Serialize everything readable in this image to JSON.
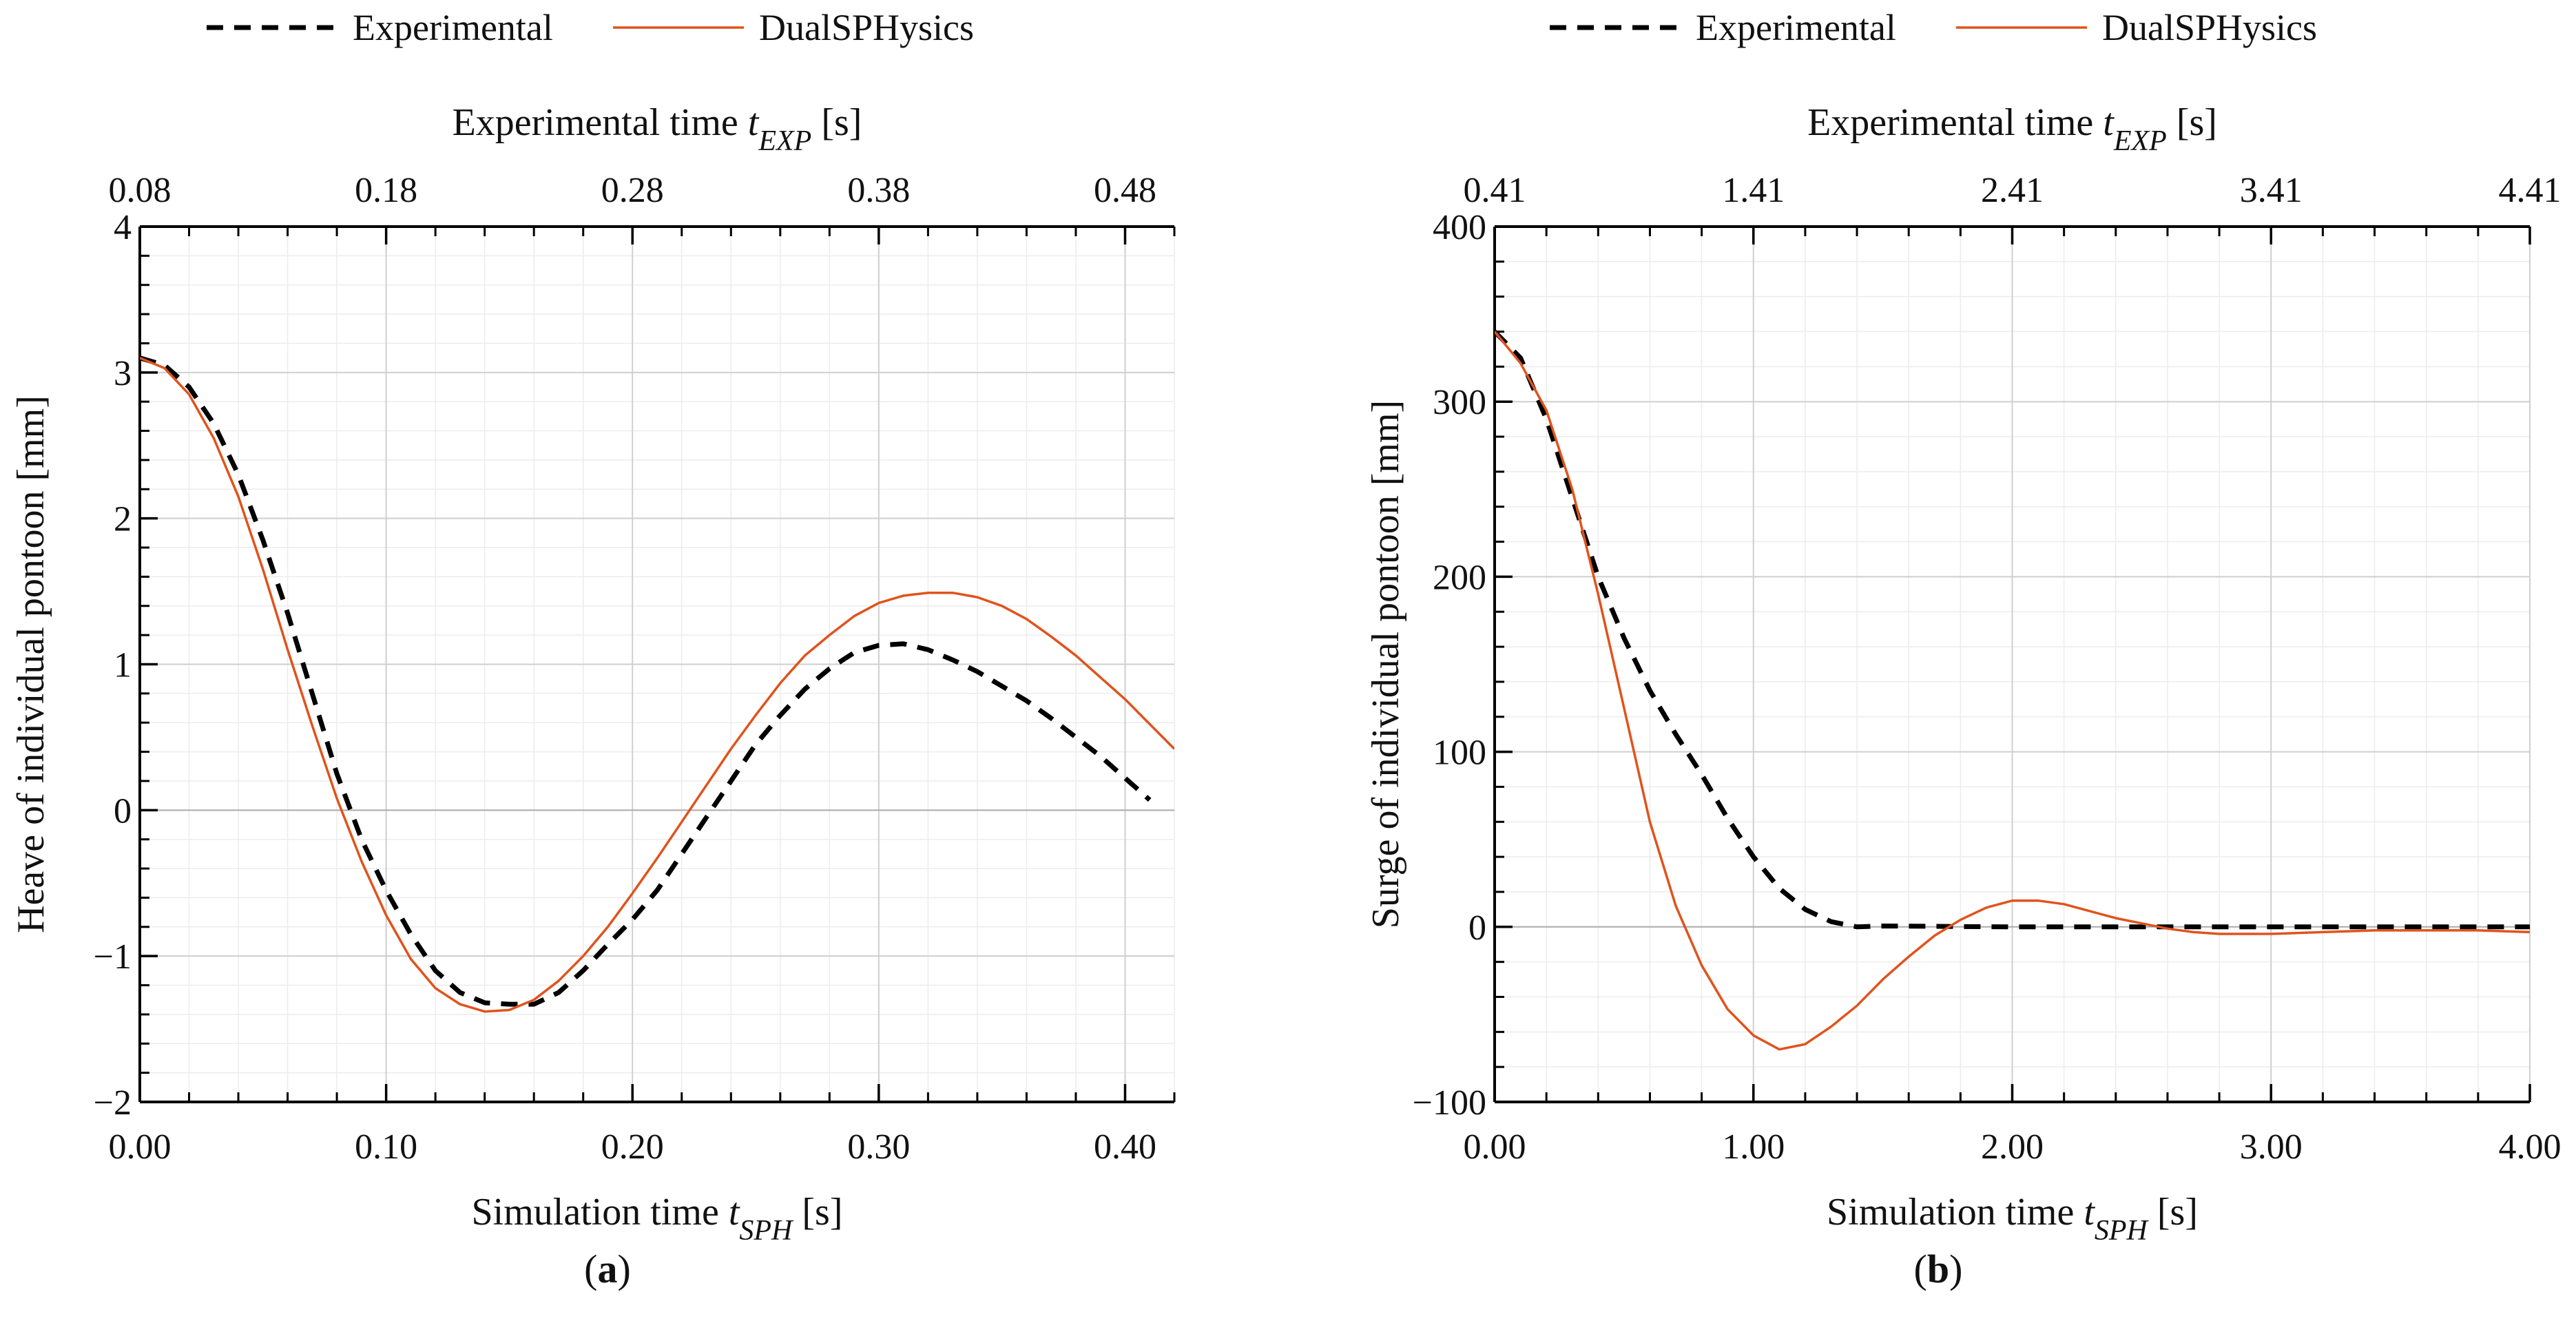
{
  "colors": {
    "experimental": "#000000",
    "dualsphysics": "#e0531c",
    "grid_major": "#cfcfcf",
    "grid_minor": "#ececec"
  },
  "chart_data": [
    {
      "type": "line",
      "caption": "a",
      "legend": [
        "Experimental",
        "DualSPHysics"
      ],
      "legend_placement": "top",
      "xlabel": {
        "text": "Simulation time",
        "var": "t",
        "sub": "SPH",
        "unit": "[s]"
      },
      "x2label": {
        "text": "Experimental time",
        "var": "t",
        "sub": "EXP",
        "unit": "[s]"
      },
      "ylabel": "Heave of individual pontoon [mm]",
      "xlim": [
        0,
        0.42
      ],
      "ylim": [
        -2,
        4
      ],
      "xticks": [
        0,
        0.1,
        0.2,
        0.3,
        0.4
      ],
      "xtick_labels": [
        "0.00",
        "0.10",
        "0.20",
        "0.30",
        "0.40"
      ],
      "x2tick_labels": [
        "0.08",
        "0.18",
        "0.28",
        "0.38",
        "0.48"
      ],
      "yticks": [
        -2,
        -1,
        0,
        1,
        2,
        3,
        4
      ],
      "ytick_labels": [
        "−2",
        "−1",
        "0",
        "1",
        "2",
        "3",
        "4"
      ],
      "xminor": 0.02,
      "yminor": 0.2,
      "grid": true,
      "series": [
        {
          "name": "Experimental",
          "style": "dashed",
          "x": [
            0,
            0.01,
            0.02,
            0.03,
            0.04,
            0.05,
            0.06,
            0.07,
            0.08,
            0.09,
            0.1,
            0.11,
            0.12,
            0.13,
            0.14,
            0.15,
            0.16,
            0.17,
            0.18,
            0.19,
            0.2,
            0.21,
            0.22,
            0.23,
            0.24,
            0.25,
            0.26,
            0.27,
            0.28,
            0.29,
            0.3,
            0.31,
            0.32,
            0.33,
            0.34,
            0.35,
            0.36,
            0.37,
            0.38,
            0.39,
            0.4,
            0.41
          ],
          "y": [
            3.1,
            3.05,
            2.9,
            2.65,
            2.3,
            1.85,
            1.35,
            0.8,
            0.25,
            -0.2,
            -0.55,
            -0.85,
            -1.1,
            -1.25,
            -1.32,
            -1.33,
            -1.33,
            -1.25,
            -1.1,
            -0.92,
            -0.75,
            -0.55,
            -0.3,
            -0.05,
            0.2,
            0.45,
            0.65,
            0.83,
            0.97,
            1.08,
            1.13,
            1.14,
            1.1,
            1.03,
            0.95,
            0.85,
            0.75,
            0.63,
            0.5,
            0.37,
            0.22,
            0.07
          ]
        },
        {
          "name": "DualSPHysics",
          "style": "solid",
          "x": [
            0,
            0.01,
            0.02,
            0.03,
            0.04,
            0.05,
            0.06,
            0.07,
            0.08,
            0.09,
            0.1,
            0.11,
            0.12,
            0.13,
            0.14,
            0.15,
            0.16,
            0.17,
            0.18,
            0.19,
            0.2,
            0.21,
            0.22,
            0.23,
            0.24,
            0.25,
            0.26,
            0.27,
            0.28,
            0.29,
            0.3,
            0.31,
            0.32,
            0.33,
            0.34,
            0.35,
            0.36,
            0.37,
            0.38,
            0.39,
            0.4,
            0.41,
            0.42
          ],
          "y": [
            3.1,
            3.03,
            2.85,
            2.55,
            2.15,
            1.65,
            1.1,
            0.58,
            0.08,
            -0.35,
            -0.72,
            -1.02,
            -1.22,
            -1.33,
            -1.38,
            -1.37,
            -1.3,
            -1.17,
            -1.0,
            -0.8,
            -0.57,
            -0.33,
            -0.08,
            0.17,
            0.42,
            0.65,
            0.87,
            1.06,
            1.2,
            1.33,
            1.42,
            1.47,
            1.49,
            1.49,
            1.46,
            1.4,
            1.31,
            1.19,
            1.06,
            0.91,
            0.76,
            0.59,
            0.42
          ]
        }
      ]
    },
    {
      "type": "line",
      "caption": "b",
      "legend": [
        "Experimental",
        "DualSPHysics"
      ],
      "legend_placement": "top",
      "xlabel": {
        "text": "Simulation time",
        "var": "t",
        "sub": "SPH",
        "unit": "[s]"
      },
      "x2label": {
        "text": "Experimental time",
        "var": "t",
        "sub": "EXP",
        "unit": "[s]"
      },
      "ylabel": "Surge of individual pontoon [mm]",
      "xlim": [
        0,
        4
      ],
      "ylim": [
        -100,
        400
      ],
      "xticks": [
        0,
        1,
        2,
        3,
        4
      ],
      "xtick_labels": [
        "0.00",
        "1.00",
        "2.00",
        "3.00",
        "4.00"
      ],
      "x2tick_labels": [
        "0.41",
        "1.41",
        "2.41",
        "3.41",
        "4.41"
      ],
      "yticks": [
        -100,
        0,
        100,
        200,
        300,
        400
      ],
      "ytick_labels": [
        "−100",
        "0",
        "100",
        "200",
        "300",
        "400"
      ],
      "xminor": 0.2,
      "yminor": 20,
      "grid": true,
      "series": [
        {
          "name": "Experimental",
          "style": "dashed",
          "x": [
            0,
            0.1,
            0.2,
            0.3,
            0.4,
            0.5,
            0.6,
            0.7,
            0.8,
            0.9,
            1.0,
            1.1,
            1.2,
            1.3,
            1.4,
            1.5,
            2.0,
            2.5,
            3.0,
            3.5,
            4.0
          ],
          "y": [
            340,
            325,
            290,
            245,
            200,
            165,
            135,
            110,
            87,
            62,
            40,
            22,
            10,
            3,
            0,
            0.5,
            0,
            0,
            0,
            0,
            0
          ]
        },
        {
          "name": "DualSPHysics",
          "style": "solid",
          "x": [
            0,
            0.1,
            0.2,
            0.3,
            0.4,
            0.5,
            0.6,
            0.7,
            0.8,
            0.9,
            1.0,
            1.1,
            1.2,
            1.3,
            1.4,
            1.5,
            1.6,
            1.7,
            1.8,
            1.9,
            2.0,
            2.1,
            2.2,
            2.3,
            2.4,
            2.5,
            2.6,
            2.7,
            2.8,
            2.9,
            3.0,
            3.2,
            3.4,
            3.6,
            3.8,
            4.0
          ],
          "y": [
            340,
            322,
            295,
            250,
            190,
            125,
            60,
            12,
            -22,
            -47,
            -62,
            -70,
            -67,
            -57,
            -45,
            -30,
            -17,
            -5,
            4,
            11,
            15,
            15,
            13,
            9,
            5,
            2,
            -1,
            -3,
            -4,
            -4,
            -4,
            -3,
            -2,
            -2,
            -2,
            -3
          ]
        }
      ]
    }
  ]
}
